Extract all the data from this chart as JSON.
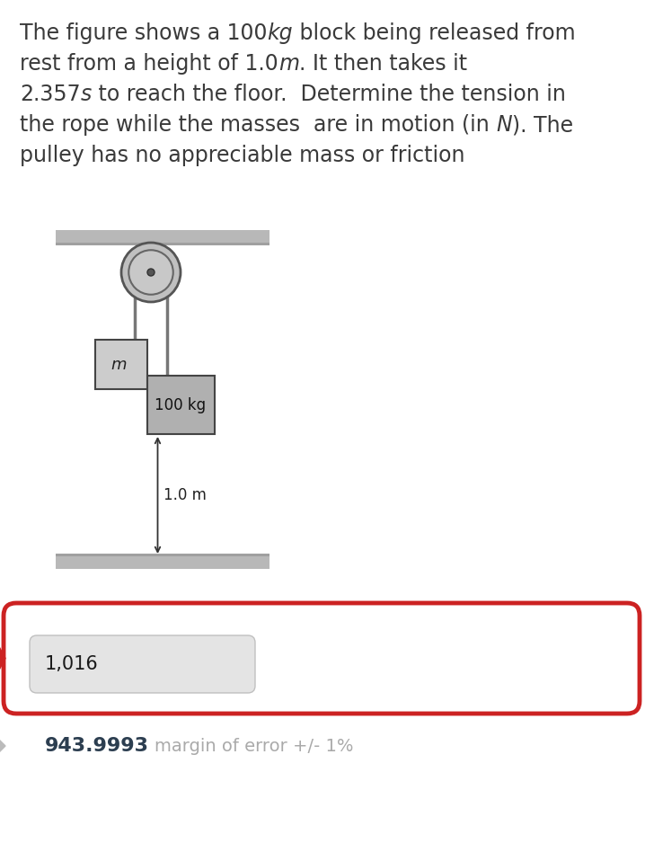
{
  "bg_color": "#ffffff",
  "text_color": "#3a3a3a",
  "answer_value": "1,016",
  "correct_value": "943.9993",
  "margin_text": "margin of error +/- 1%",
  "answer_box_border": "#cc2222",
  "answer_input_fill": "#e4e4e4",
  "ceiling_color": "#b8b8b8",
  "floor_color": "#b8b8b8",
  "pulley_outer_color": "#c0c0c0",
  "pulley_inner_color": "#d8d8d8",
  "pulley_edge_color": "#555555",
  "rope_color": "#777777",
  "block_m_color": "#cccccc",
  "block_100_color": "#b0b0b0",
  "block_border": "#444444",
  "mass_label": "m",
  "block_label": "100 kg",
  "height_label": "1.0 m",
  "correct_color": "#2c3e50",
  "margin_color": "#aaaaaa",
  "fontsize_body": 17,
  "fontsize_answer": 15,
  "fontsize_correct": 15
}
